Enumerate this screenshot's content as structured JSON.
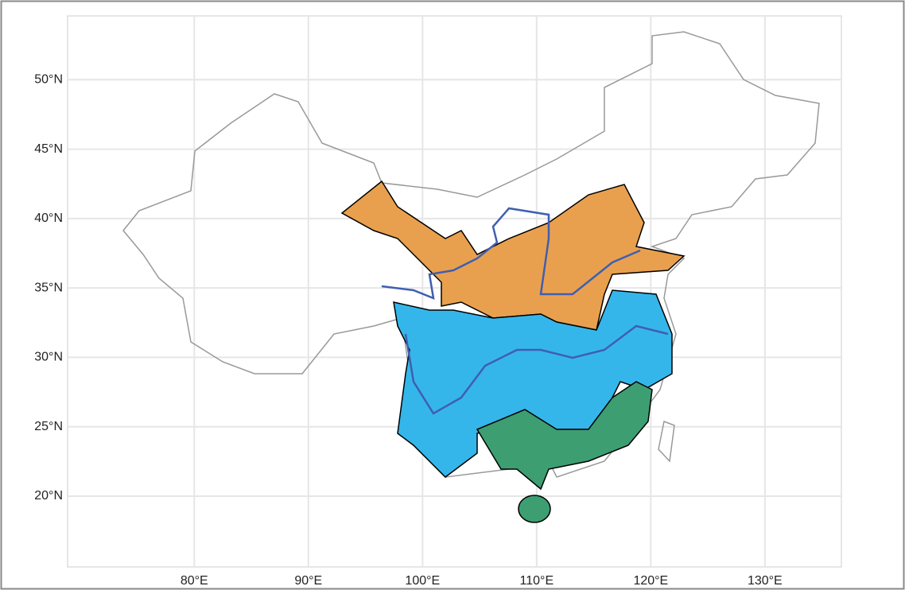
{
  "chart_data": {
    "type": "map",
    "xlim": [
      68.9,
      136.7
    ],
    "ylim": [
      14.9,
      54.6
    ],
    "xticks": [
      {
        "value": 80,
        "label": "80°E"
      },
      {
        "value": 90,
        "label": "90°E"
      },
      {
        "value": 100,
        "label": "100°E"
      },
      {
        "value": 110,
        "label": "110°E"
      },
      {
        "value": 120,
        "label": "120°E"
      },
      {
        "value": 130,
        "label": "130°E"
      }
    ],
    "yticks": [
      {
        "value": 20,
        "label": "20°N"
      },
      {
        "value": 25,
        "label": "25°N"
      },
      {
        "value": 30,
        "label": "30°N"
      },
      {
        "value": 35,
        "label": "35°N"
      },
      {
        "value": 40,
        "label": "40°N"
      },
      {
        "value": 45,
        "label": "45°N"
      },
      {
        "value": 50,
        "label": "50°N"
      }
    ],
    "grid": true
  }
}
